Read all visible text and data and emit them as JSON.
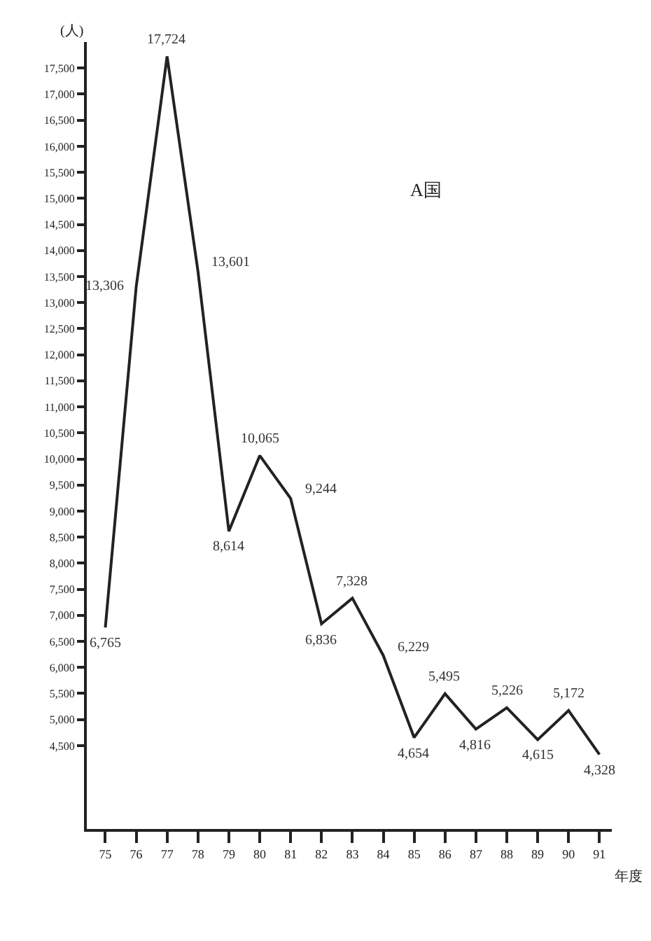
{
  "chart_data": {
    "type": "line",
    "ylabel": "(人)",
    "xlabel": "年度",
    "annotations": [
      "A国"
    ],
    "categories": [
      "75",
      "76",
      "77",
      "78",
      "79",
      "80",
      "81",
      "82",
      "83",
      "84",
      "85",
      "86",
      "87",
      "88",
      "89",
      "90",
      "91"
    ],
    "series": [
      {
        "color": "#222222",
        "values": [
          6765,
          13306,
          17724,
          13601,
          8614,
          10065,
          9244,
          6836,
          7328,
          6229,
          4654,
          5495,
          4816,
          5226,
          4615,
          5172,
          4328
        ]
      }
    ],
    "value_labels": [
      "6,765",
      "13,306",
      "17,724",
      "13,601",
      "8,614",
      "10,065",
      "9,244",
      "6,836",
      "7,328",
      "6,229",
      "4,654",
      "5,495",
      "4,816",
      "5,226",
      "4,615",
      "5,172",
      "4,328"
    ],
    "ylim": [
      2900,
      18000
    ],
    "yticks": [
      {
        "value": 4500,
        "label": "4,500"
      },
      {
        "value": 5000,
        "label": "5,000"
      },
      {
        "value": 5500,
        "label": "5,500"
      },
      {
        "value": 6000,
        "label": "6,000"
      },
      {
        "value": 6500,
        "label": "6,500"
      },
      {
        "value": 7000,
        "label": "7,000"
      },
      {
        "value": 7500,
        "label": "7,500"
      },
      {
        "value": 8000,
        "label": "8,000"
      },
      {
        "value": 8500,
        "label": "8,500"
      },
      {
        "value": 9000,
        "label": "9,000"
      },
      {
        "value": 9500,
        "label": "9,500"
      },
      {
        "value": 10000,
        "label": "10,000"
      },
      {
        "value": 10500,
        "label": "10,500"
      },
      {
        "value": 11000,
        "label": "11,000"
      },
      {
        "value": 11500,
        "label": "11,500"
      },
      {
        "value": 12000,
        "label": "12,000"
      },
      {
        "value": 12500,
        "label": "12,500"
      },
      {
        "value": 13000,
        "label": "13,000"
      },
      {
        "value": 13500,
        "label": "13,500"
      },
      {
        "value": 14000,
        "label": "14,000"
      },
      {
        "value": 14500,
        "label": "14,500"
      },
      {
        "value": 15000,
        "label": "15,000"
      },
      {
        "value": 15500,
        "label": "15,500"
      },
      {
        "value": 16000,
        "label": "16,000"
      },
      {
        "value": 16500,
        "label": "16,500"
      },
      {
        "value": 17000,
        "label": "17,000"
      },
      {
        "value": 17500,
        "label": "17,500"
      }
    ],
    "marker": "none",
    "line_style": "solid"
  }
}
